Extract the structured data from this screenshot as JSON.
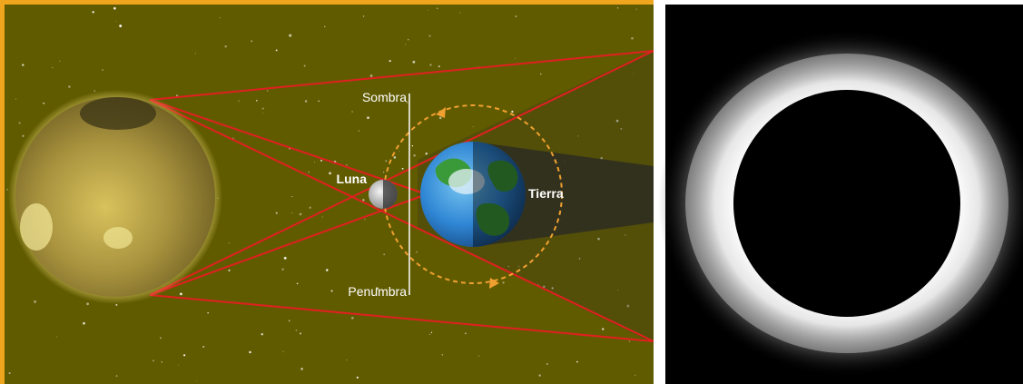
{
  "diagram": {
    "labels": {
      "umbra": "Sombra",
      "penumbra": "Penumbra",
      "moon": "Luna",
      "earth": "Tierra"
    },
    "colors": {
      "frame": "#f0a51e",
      "sky": "#615b00",
      "sun": "#b8a24a",
      "sun_glow": "#e3d06a",
      "shadow_lines": "#e02020",
      "orbit": "#f0a030",
      "ocean": "#2e83d6",
      "land": "#3a9a3a",
      "shadow_cone": "#2a2a2a"
    },
    "icons": {
      "sun": "sun-icon",
      "moon": "moon-icon",
      "earth": "earth-icon",
      "orbit": "orbit-arrow-icon"
    }
  },
  "photo": {
    "subject": "solar-eclipse-corona",
    "colors": {
      "background": "#000000",
      "corona": "#ffffff"
    }
  }
}
